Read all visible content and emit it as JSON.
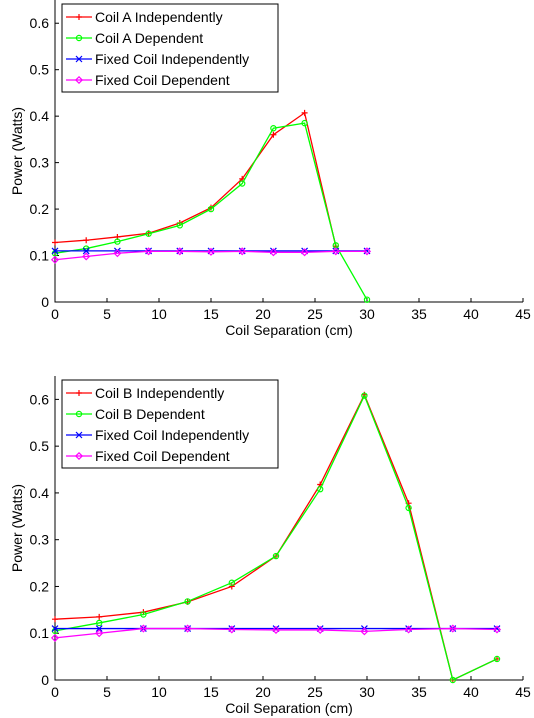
{
  "chart_data": [
    {
      "type": "line",
      "xlabel": "Coil Separation (cm)",
      "ylabel": "Power (Watts)",
      "xlim": [
        0,
        45
      ],
      "ylim": [
        0,
        0.65
      ],
      "xticks": [
        0,
        5,
        10,
        15,
        20,
        25,
        30,
        35,
        40,
        45
      ],
      "yticks": [
        0,
        0.1,
        0.2,
        0.3,
        0.4,
        0.5,
        0.6
      ],
      "grid": false,
      "legend_position": "top-left",
      "series": [
        {
          "name": "Coil A Independently",
          "color": "#ff0000",
          "marker": "plus",
          "x": [
            0,
            3,
            6,
            9,
            12,
            15,
            18,
            21,
            24,
            27
          ],
          "y": [
            0.128,
            0.133,
            0.14,
            0.148,
            0.17,
            0.203,
            0.265,
            0.36,
            0.407,
            0.12
          ]
        },
        {
          "name": "Coil A Dependent",
          "color": "#00ff00",
          "marker": "circle",
          "x": [
            0,
            3,
            6,
            9,
            12,
            15,
            18,
            21,
            24,
            27,
            30
          ],
          "y": [
            0.105,
            0.115,
            0.13,
            0.147,
            0.165,
            0.2,
            0.255,
            0.374,
            0.385,
            0.122,
            0.005
          ]
        },
        {
          "name": "Fixed Coil Independently",
          "color": "#0000ff",
          "marker": "x",
          "x": [
            0,
            3,
            6,
            9,
            12,
            15,
            18,
            21,
            24,
            27,
            30
          ],
          "y": [
            0.11,
            0.11,
            0.11,
            0.11,
            0.11,
            0.11,
            0.11,
            0.11,
            0.11,
            0.11,
            0.11
          ]
        },
        {
          "name": "Fixed Coil Dependent",
          "color": "#ff00ff",
          "marker": "diamond",
          "x": [
            0,
            3,
            6,
            9,
            12,
            15,
            18,
            21,
            24,
            27,
            30
          ],
          "y": [
            0.091,
            0.098,
            0.105,
            0.109,
            0.109,
            0.108,
            0.109,
            0.107,
            0.107,
            0.109,
            0.109
          ]
        }
      ]
    },
    {
      "type": "line",
      "xlabel": "Coil Separation (cm)",
      "ylabel": "Power (Watts)",
      "xlim": [
        0,
        45
      ],
      "ylim": [
        0,
        0.65
      ],
      "xticks": [
        0,
        5,
        10,
        15,
        20,
        25,
        30,
        35,
        40,
        45
      ],
      "yticks": [
        0,
        0.1,
        0.2,
        0.3,
        0.4,
        0.5,
        0.6
      ],
      "grid": false,
      "legend_position": "top-left",
      "series": [
        {
          "name": "Coil B Independently",
          "color": "#ff0000",
          "marker": "plus",
          "x": [
            0,
            4.25,
            8.5,
            12.75,
            17,
            21.25,
            25.5,
            29.75,
            34,
            38.25,
            42.5
          ],
          "y": [
            0.13,
            0.135,
            0.145,
            0.167,
            0.2,
            0.265,
            0.418,
            0.61,
            0.378,
            0.0,
            0.045
          ]
        },
        {
          "name": "Coil B Dependent",
          "color": "#00ff00",
          "marker": "circle",
          "x": [
            0,
            4.25,
            8.5,
            12.75,
            17,
            21.25,
            25.5,
            29.75,
            34,
            38.25,
            42.5
          ],
          "y": [
            0.105,
            0.122,
            0.14,
            0.168,
            0.208,
            0.265,
            0.408,
            0.608,
            0.368,
            0.0,
            0.045
          ]
        },
        {
          "name": "Fixed Coil Independently",
          "color": "#0000ff",
          "marker": "x",
          "x": [
            0,
            4.25,
            8.5,
            12.75,
            17,
            21.25,
            25.5,
            29.75,
            34,
            38.25,
            42.5
          ],
          "y": [
            0.11,
            0.11,
            0.11,
            0.11,
            0.11,
            0.11,
            0.11,
            0.11,
            0.11,
            0.11,
            0.11
          ]
        },
        {
          "name": "Fixed Coil Dependent",
          "color": "#ff00ff",
          "marker": "diamond",
          "x": [
            0,
            4.25,
            8.5,
            12.75,
            17,
            21.25,
            25.5,
            29.75,
            34,
            38.25,
            42.5
          ],
          "y": [
            0.09,
            0.1,
            0.11,
            0.11,
            0.108,
            0.107,
            0.107,
            0.104,
            0.108,
            0.11,
            0.108
          ]
        }
      ]
    }
  ]
}
